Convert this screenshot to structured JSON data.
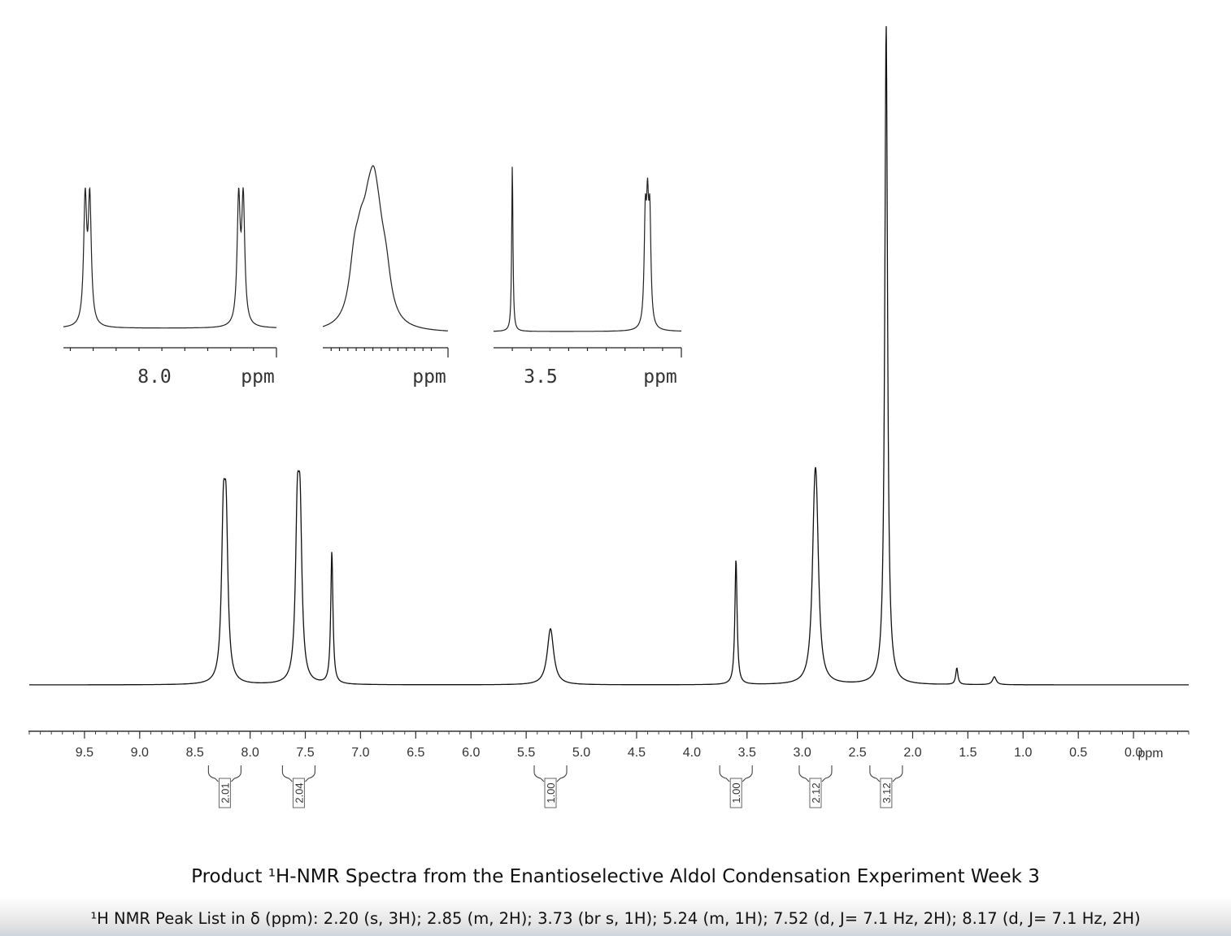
{
  "chart_data": {
    "type": "line",
    "xlabel": "ppm",
    "xlim": [
      10.0,
      -0.5
    ],
    "x_ticks": [
      "9.5",
      "9.0",
      "8.5",
      "8.0",
      "7.5",
      "7.0",
      "6.5",
      "6.0",
      "5.5",
      "5.0",
      "4.5",
      "4.0",
      "3.5",
      "3.0",
      "2.5",
      "2.0",
      "1.5",
      "1.0",
      "0.5",
      "0.0"
    ],
    "peaks": [
      {
        "shift": 8.23,
        "height": 0.27,
        "width": 0.02,
        "split": 0.025,
        "n": 2
      },
      {
        "shift": 7.56,
        "height": 0.28,
        "width": 0.02,
        "split": 0.025,
        "n": 2
      },
      {
        "shift": 7.26,
        "height": 0.2,
        "width": 0.012,
        "split": 0,
        "n": 1
      },
      {
        "shift": 5.28,
        "height": 0.085,
        "width": 0.035,
        "split": 0,
        "n": 1
      },
      {
        "shift": 3.6,
        "height": 0.19,
        "width": 0.012,
        "split": 0,
        "n": 1
      },
      {
        "shift": 2.88,
        "height": 0.235,
        "width": 0.025,
        "split": 0.012,
        "n": 3
      },
      {
        "shift": 2.24,
        "height": 1.0,
        "width": 0.015,
        "split": 0,
        "n": 1
      },
      {
        "shift": 1.6,
        "height": 0.025,
        "width": 0.012,
        "split": 0,
        "n": 1
      },
      {
        "shift": 1.26,
        "height": 0.012,
        "width": 0.02,
        "split": 0,
        "n": 1
      }
    ],
    "integrals": [
      {
        "shift": 8.23,
        "label": "2.01"
      },
      {
        "shift": 7.56,
        "label": "2.04"
      },
      {
        "shift": 5.28,
        "label": "1.00"
      },
      {
        "shift": 3.6,
        "label": "1.00"
      },
      {
        "shift": 2.88,
        "label": "2.12"
      },
      {
        "shift": 2.24,
        "label": "3.12"
      }
    ],
    "insets": [
      {
        "range": [
          8.33,
          7.4
        ],
        "tick_label": "8.0",
        "unit": "ppm"
      },
      {
        "range": [
          5.4,
          5.1
        ],
        "tick_label": "",
        "unit": "ppm"
      },
      {
        "range": [
          3.7,
          2.7
        ],
        "tick_label": "3.5",
        "unit": "ppm"
      }
    ]
  },
  "caption": {
    "title": "Product ¹H-NMR Spectra from the Enantioselective Aldol Condensation Experiment Week 3",
    "peak_list": "¹H NMR Peak List in δ (ppm): 2.20 (s, 3H); 2.85 (m, 2H); 3.73 (br s, 1H); 5.24 (m, 1H); 7.52 (d, J= 7.1 Hz, 2H); 8.17 (d, J= 7.1 Hz, 2H)"
  }
}
